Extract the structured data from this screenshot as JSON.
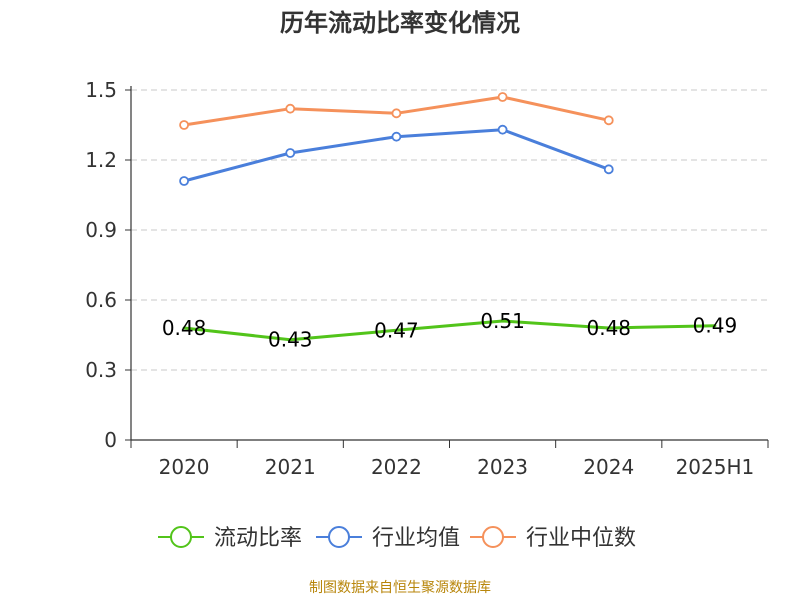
{
  "title": "历年流动比率变化情况",
  "source_note": "制图数据来自恒生聚源数据库",
  "chart_data": {
    "type": "line",
    "title": "历年流动比率变化情况",
    "categories": [
      "2020",
      "2021",
      "2022",
      "2023",
      "2024",
      "2025H1"
    ],
    "y_ticks": [
      "0",
      "0.3",
      "0.6",
      "0.9",
      "1.2",
      "1.5"
    ],
    "ylim": [
      0,
      1.5
    ],
    "grid": true,
    "legend_position": "bottom",
    "series": [
      {
        "name": "流动比率",
        "color": "#52c41a",
        "values": [
          0.48,
          0.43,
          0.47,
          0.51,
          0.48,
          0.49
        ],
        "labels": [
          "0.48",
          "0.43",
          "0.47",
          "0.51",
          "0.48",
          "0.49"
        ],
        "show_markers": false,
        "show_labels": true
      },
      {
        "name": "行业均值",
        "color": "#4a7fdb",
        "values": [
          1.11,
          1.23,
          1.3,
          1.33,
          1.16,
          null
        ],
        "show_markers": true,
        "show_labels": false
      },
      {
        "name": "行业中位数",
        "color": "#f5915b",
        "values": [
          1.35,
          1.42,
          1.4,
          1.47,
          1.37,
          null
        ],
        "show_markers": true,
        "show_labels": false
      }
    ]
  }
}
